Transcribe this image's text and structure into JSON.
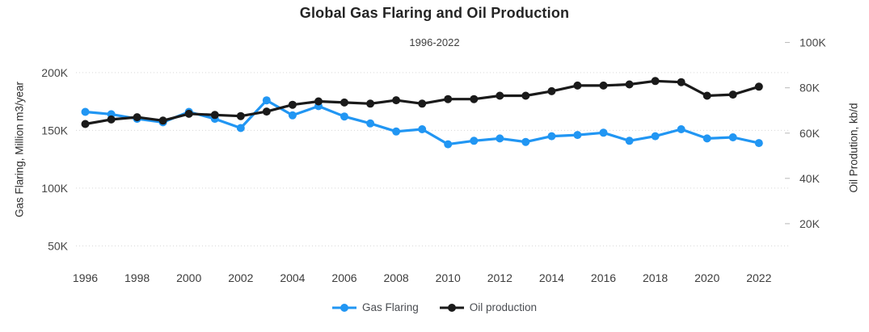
{
  "chart_data": {
    "type": "line",
    "title": "Global Gas Flaring and Oil Production",
    "subtitle": "1996-2022",
    "grid": true,
    "legend_position": "bottom",
    "x": [
      1996,
      1997,
      1998,
      1999,
      2000,
      2001,
      2002,
      2003,
      2004,
      2005,
      2006,
      2007,
      2008,
      2009,
      2010,
      2011,
      2012,
      2013,
      2014,
      2015,
      2016,
      2017,
      2018,
      2019,
      2020,
      2021,
      2022
    ],
    "series": [
      {
        "name": "Gas Flaring",
        "axis": "left",
        "color": "#2196F3",
        "values": [
          166000,
          164000,
          160000,
          157000,
          166000,
          160000,
          152000,
          176000,
          163000,
          171000,
          162000,
          156000,
          149000,
          151000,
          138000,
          141000,
          143000,
          140000,
          145000,
          146000,
          148000,
          141000,
          145000,
          151000,
          143000,
          144000,
          139000
        ]
      },
      {
        "name": "Oil production",
        "axis": "right",
        "color": "#1a1a1a",
        "values": [
          64000,
          66000,
          67000,
          65500,
          68500,
          68000,
          67500,
          69500,
          72500,
          74000,
          73500,
          73000,
          74500,
          73000,
          75000,
          75000,
          76500,
          76500,
          78500,
          81000,
          81000,
          81500,
          83000,
          82500,
          76500,
          77000,
          80500
        ]
      }
    ],
    "left_axis": {
      "label": "Gas Flaring, Million m3/year",
      "ticks": [
        50000,
        100000,
        150000,
        200000
      ],
      "tick_labels": [
        "50K",
        "100K",
        "150K",
        "200K"
      ],
      "range": [
        30000,
        230000
      ]
    },
    "right_axis": {
      "label": "Oil Prodution, kb/d",
      "ticks": [
        20000,
        40000,
        60000,
        80000,
        100000
      ],
      "tick_labels": [
        "20K",
        "40K",
        "60K",
        "80K",
        "100K"
      ],
      "range": [
        0,
        102000
      ]
    },
    "x_axis": {
      "tick_labels": [
        "1996",
        "1998",
        "2000",
        "2002",
        "2004",
        "2006",
        "2008",
        "2010",
        "2012",
        "2014",
        "2016",
        "2018",
        "2020",
        "2022"
      ]
    },
    "colors": {
      "grid": "#d6d6d6",
      "tick_text": "#474747",
      "gas_flaring_blue": "#2196F3",
      "oil_production_black": "#1a1a1a"
    }
  }
}
